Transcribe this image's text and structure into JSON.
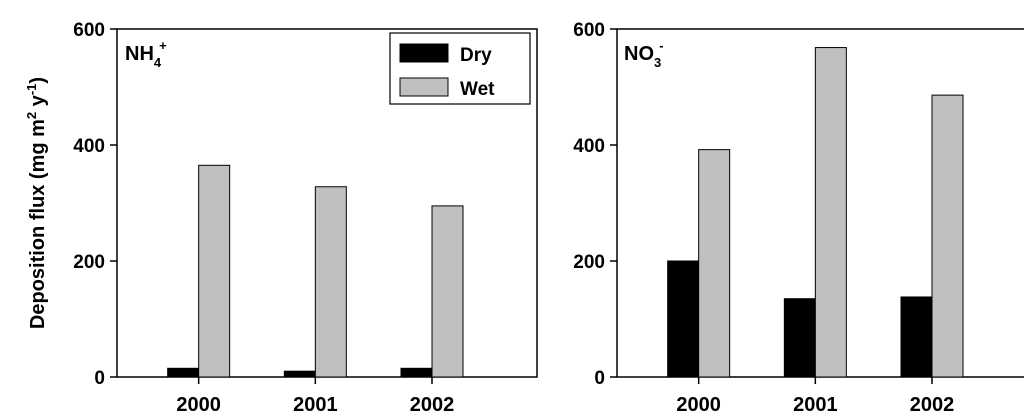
{
  "ylabel": "Deposition flux (mg m",
  "ylabel_sup1": "2",
  "ylabel_mid": " y",
  "ylabel_sup2": "-1",
  "ylabel_end": ")",
  "colors": {
    "dry": "#000000",
    "wet": "#c0c0c0",
    "axis": "#000000"
  },
  "chart_data": [
    {
      "type": "bar",
      "panel_label": {
        "main": "NH",
        "sub": "4",
        "sup": "+"
      },
      "categories": [
        "2000",
        "2001",
        "2002"
      ],
      "series": [
        {
          "name": "Dry",
          "values": [
            15,
            10,
            15
          ]
        },
        {
          "name": "Wet",
          "values": [
            365,
            328,
            295
          ]
        }
      ],
      "ylim": [
        0,
        600
      ],
      "yticks": [
        "0",
        "200",
        "400",
        "600"
      ],
      "xlim": [
        1999.3,
        2002.9
      ],
      "legend": "top-right"
    },
    {
      "type": "bar",
      "panel_label": {
        "main": "NO",
        "sub": "3",
        "sup": "-"
      },
      "categories": [
        "2000",
        "2001",
        "2002"
      ],
      "series": [
        {
          "name": "Dry",
          "values": [
            200,
            135,
            138
          ]
        },
        {
          "name": "Wet",
          "values": [
            392,
            568,
            486
          ]
        }
      ],
      "ylim": [
        0,
        600
      ],
      "yticks": [
        "0",
        "200",
        "400",
        "600"
      ],
      "xlim": [
        1999.3,
        2002.9
      ],
      "legend": "none"
    }
  ]
}
